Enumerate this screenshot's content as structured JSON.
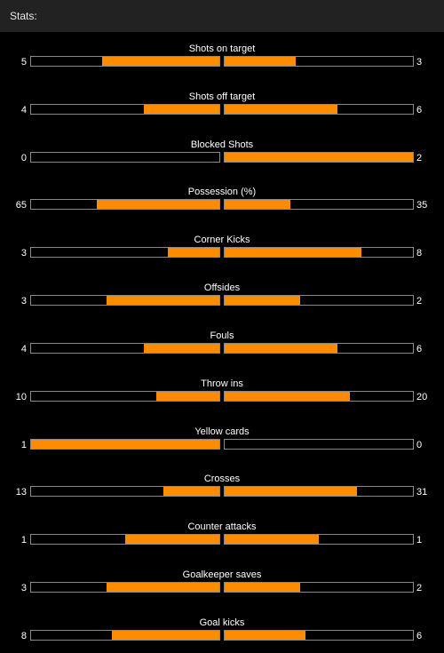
{
  "header": {
    "title": "Stats:"
  },
  "colors": {
    "bar_fill": "#ff8c00",
    "bar_border": "#8a8a8a",
    "header_bg": "#222222",
    "background": "#000000"
  },
  "stats": [
    {
      "label": "Shots on target",
      "home": "5",
      "away": "3",
      "home_fill": 0.625,
      "away_fill": 0.375
    },
    {
      "label": "Shots off target",
      "home": "4",
      "away": "6",
      "home_fill": 0.4,
      "away_fill": 0.6
    },
    {
      "label": "Blocked Shots",
      "home": "0",
      "away": "2",
      "home_fill": 0.0,
      "away_fill": 1.0
    },
    {
      "label": "Possession (%)",
      "home": "65",
      "away": "35",
      "home_fill": 0.65,
      "away_fill": 0.35
    },
    {
      "label": "Corner Kicks",
      "home": "3",
      "away": "8",
      "home_fill": 0.273,
      "away_fill": 0.727
    },
    {
      "label": "Offsides",
      "home": "3",
      "away": "2",
      "home_fill": 0.6,
      "away_fill": 0.4
    },
    {
      "label": "Fouls",
      "home": "4",
      "away": "6",
      "home_fill": 0.4,
      "away_fill": 0.6
    },
    {
      "label": "Throw ins",
      "home": "10",
      "away": "20",
      "home_fill": 0.333,
      "away_fill": 0.667
    },
    {
      "label": "Yellow cards",
      "home": "1",
      "away": "0",
      "home_fill": 1.0,
      "away_fill": 0.0
    },
    {
      "label": "Crosses",
      "home": "13",
      "away": "31",
      "home_fill": 0.295,
      "away_fill": 0.705
    },
    {
      "label": "Counter attacks",
      "home": "1",
      "away": "1",
      "home_fill": 0.5,
      "away_fill": 0.5
    },
    {
      "label": "Goalkeeper saves",
      "home": "3",
      "away": "2",
      "home_fill": 0.6,
      "away_fill": 0.4
    },
    {
      "label": "Goal kicks",
      "home": "8",
      "away": "6",
      "home_fill": 0.571,
      "away_fill": 0.429
    }
  ]
}
